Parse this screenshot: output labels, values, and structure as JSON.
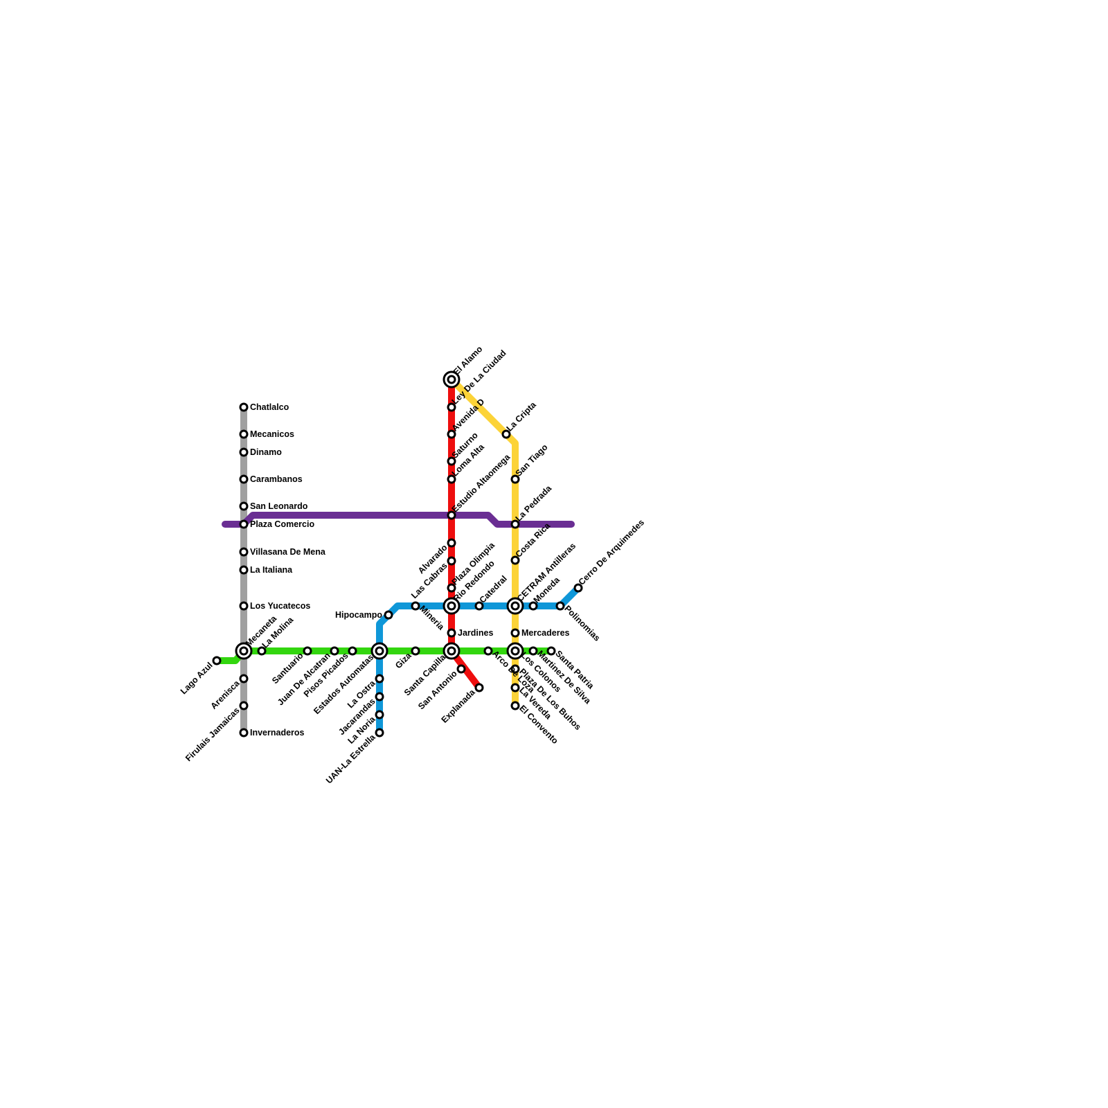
{
  "colors": {
    "gray_line": "#a0a0a0",
    "purple_line": "#6a2e93",
    "green_line": "#33d60f",
    "red_line": "#ee0e0e",
    "blue_line": "#0f97d8",
    "yellow_line": "#fcd338",
    "station_stroke": "#000000",
    "station_fill": "#ffffff"
  },
  "stations": {
    "chatlalco": "Chatlalco",
    "mecanicos": "Mecanicos",
    "dinamo": "Dinamo",
    "carambanos": "Carambanos",
    "san_leonardo": "San Leonardo",
    "plaza_comercio": "Plaza Comercio",
    "villasana_de_mena": "Villasana De Mena",
    "la_italiana": "La Italiana",
    "los_yucatecos": "Los Yucatecos",
    "mecaneta": "Mecaneta",
    "arenisca": "Arenisca",
    "firulais_jamaicas": "Firulais Jamaicas",
    "invernaderos": "Invernaderos",
    "lago_azul": "Lago Azul",
    "la_molina": "La Molina",
    "santuario": "Santuario",
    "juan_de_alcatran": "Juan De Alcatran",
    "pisos_picados": "Pisos Picados",
    "estados_automatas": "Estados Automatas",
    "giza": "Giza",
    "santa_capilla": "Santa Capilla",
    "arco_de_loza": "Arco De Loza",
    "los_colonos": "Los Colonos",
    "martinez_de_silva": "Martinez De Silva",
    "santa_patria": "Santa Patria",
    "el_alamo": "El Alamo",
    "ley_de_la_ciudad": "Ley De La Ciudad",
    "avenida_d": "Avenida D",
    "saturno": "Saturno",
    "loma_alta": "Loma Alta",
    "estudio_altaomega": "Estudio Altaomega",
    "alvarado": "Alvarado",
    "las_cabras": "Las Cabras",
    "plaza_olimpia": "Plaza Olimpia",
    "rio_redondo": "Rio Redondo",
    "jardines": "Jardines",
    "san_antonio": "San Antonio",
    "explanada": "Explanada",
    "hipocampo": "Hipocampo",
    "mineria": "Mineria",
    "catedral": "Catedral",
    "cetram_antilleras": "CETRAM Antilleras",
    "moneda": "Moneda",
    "polinomias": "Polinomias",
    "cerro_de_arquimedes": "Cerro De Arquimedes",
    "la_ostra": "La Ostra",
    "jacarandas": "Jacarandas",
    "la_noria": "La Noria",
    "uan_la_estrella": "UAN-La Estrella",
    "la_cripta": "La Cripta",
    "san_tiago": "San Tiago",
    "la_pedrada": "La Pedrada",
    "costa_rica": "Costa Rica",
    "mercaderes": "Mercaderes",
    "plaza_de_los_buhos": "Plaza De Los Buhos",
    "la_vereda": "La Vereda",
    "el_convento": "El Convento"
  }
}
